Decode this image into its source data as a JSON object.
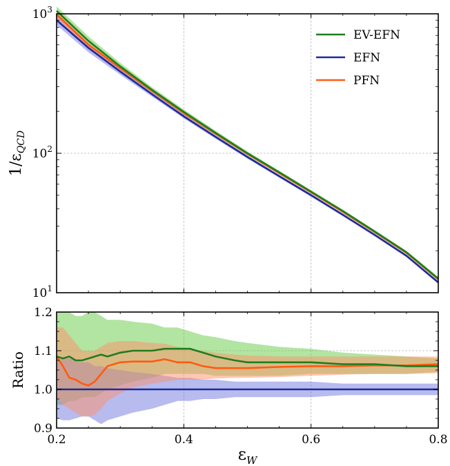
{
  "chart_data": [
    {
      "type": "line",
      "panel": "main",
      "ylabel": "1/ε_QCD",
      "yscale": "log",
      "xlim": [
        0.2,
        0.8
      ],
      "ylim": [
        10,
        1000
      ],
      "ytick_labels": [
        "10",
        "10",
        "10"
      ],
      "ytick_exponents": [
        "1",
        "2",
        "3"
      ],
      "grid": true,
      "legend": {
        "placement": "top-right",
        "entries": [
          "EV-EFN",
          "EFN",
          "PFN"
        ]
      },
      "x": [
        0.2,
        0.25,
        0.3,
        0.35,
        0.4,
        0.45,
        0.5,
        0.55,
        0.6,
        0.65,
        0.7,
        0.75,
        0.8
      ],
      "series": [
        {
          "name": "EV-EFN",
          "color": "#1e7d1e",
          "band_color": "#66cc44",
          "values": [
            1050,
            640,
            420,
            285,
            198,
            140,
            100,
            73,
            53,
            38.5,
            27.5,
            19.5,
            12.6
          ],
          "band_lower": [
            960,
            590,
            395,
            272,
            190,
            135,
            97,
            71,
            51.5,
            37.5,
            26.8,
            19.0,
            12.2
          ],
          "band_upper": [
            1130,
            690,
            445,
            298,
            206,
            145,
            103,
            75,
            54.5,
            39.5,
            28.2,
            20.0,
            13.0
          ]
        },
        {
          "name": "EFN",
          "color": "#1f2a99",
          "band_color": "#6f77dd",
          "values": [
            900,
            570,
            385,
            265,
            184,
            131,
            94,
            68.5,
            50,
            36.2,
            26,
            18.4,
            11.85
          ],
          "band_lower": [
            830,
            530,
            365,
            255,
            178,
            127,
            91.5,
            66.8,
            48.8,
            35.4,
            25.4,
            18.0,
            11.6
          ],
          "band_upper": [
            980,
            615,
            405,
            275,
            190,
            135,
            96.5,
            70.2,
            51.2,
            37.0,
            26.6,
            18.8,
            12.1
          ]
        },
        {
          "name": "PFN",
          "color": "#ff5a10",
          "band_color": "#ff8f6a",
          "values": [
            990,
            600,
            408,
            280,
            194,
            138,
            99,
            72,
            52.5,
            38,
            27.2,
            19.3,
            12.5
          ],
          "band_lower": [
            930,
            575,
            395,
            273,
            190,
            135,
            97,
            70.5,
            51.4,
            37.3,
            26.7,
            18.9,
            12.2
          ],
          "band_upper": [
            1050,
            625,
            420,
            287,
            198,
            141,
            101,
            73.5,
            53.6,
            38.7,
            27.7,
            19.7,
            12.8
          ]
        }
      ]
    },
    {
      "type": "line",
      "panel": "ratio",
      "xlabel": "ε_W",
      "ylabel": "Ratio",
      "xlim": [
        0.2,
        0.8
      ],
      "ylim": [
        0.9,
        1.2
      ],
      "xticks": [
        0.2,
        0.4,
        0.6,
        0.8
      ],
      "xtick_labels": [
        "0.2",
        "0.4",
        "0.6",
        "0.8"
      ],
      "yticks": [
        0.9,
        1.0,
        1.1,
        1.2
      ],
      "ytick_labels": [
        "0.9",
        "1.0",
        "1.1",
        "1.2"
      ],
      "grid": true,
      "x": [
        0.2,
        0.21,
        0.22,
        0.23,
        0.24,
        0.25,
        0.26,
        0.27,
        0.28,
        0.3,
        0.32,
        0.35,
        0.37,
        0.39,
        0.41,
        0.43,
        0.45,
        0.48,
        0.5,
        0.55,
        0.6,
        0.65,
        0.7,
        0.75,
        0.8
      ],
      "series": [
        {
          "name": "EV-EFN",
          "color": "#1e7d1e",
          "band_color": "#66cc44",
          "values": [
            1.085,
            1.08,
            1.085,
            1.075,
            1.075,
            1.08,
            1.085,
            1.09,
            1.085,
            1.095,
            1.1,
            1.1,
            1.105,
            1.105,
            1.105,
            1.095,
            1.085,
            1.075,
            1.07,
            1.07,
            1.07,
            1.065,
            1.065,
            1.06,
            1.06
          ],
          "band_lower": [
            0.96,
            0.96,
            0.97,
            0.97,
            0.98,
            0.98,
            0.98,
            0.99,
            1.0,
            1.01,
            1.02,
            1.03,
            1.04,
            1.04,
            1.04,
            1.04,
            1.035,
            1.035,
            1.035,
            1.035,
            1.04,
            1.04,
            1.04,
            1.04,
            1.045
          ],
          "band_upper": [
            1.2,
            1.2,
            1.2,
            1.19,
            1.19,
            1.2,
            1.2,
            1.19,
            1.18,
            1.18,
            1.175,
            1.17,
            1.16,
            1.16,
            1.15,
            1.14,
            1.135,
            1.125,
            1.12,
            1.11,
            1.105,
            1.095,
            1.09,
            1.085,
            1.08
          ]
        },
        {
          "name": "EFN",
          "color": "#1f2a99",
          "band_color": "#6f77dd",
          "values": [
            1.0,
            1.0,
            1.0,
            1.0,
            1.0,
            1.0,
            1.0,
            1.0,
            1.0,
            1.0,
            1.0,
            1.0,
            1.0,
            1.0,
            1.0,
            1.0,
            1.0,
            1.0,
            1.0,
            1.0,
            1.0,
            1.0,
            1.0,
            1.0,
            1.0
          ],
          "band_lower": [
            0.925,
            0.92,
            0.92,
            0.925,
            0.93,
            0.93,
            0.92,
            0.91,
            0.92,
            0.93,
            0.94,
            0.95,
            0.96,
            0.97,
            0.97,
            0.975,
            0.975,
            0.98,
            0.98,
            0.98,
            0.98,
            0.985,
            0.985,
            0.985,
            0.985
          ],
          "band_upper": [
            1.075,
            1.08,
            1.08,
            1.075,
            1.07,
            1.07,
            1.06,
            1.06,
            1.055,
            1.05,
            1.045,
            1.04,
            1.035,
            1.03,
            1.03,
            1.025,
            1.025,
            1.02,
            1.02,
            1.02,
            1.02,
            1.015,
            1.015,
            1.015,
            1.015
          ]
        },
        {
          "name": "PFN",
          "color": "#ff5a10",
          "band_color": "#ff8f6a",
          "values": [
            1.085,
            1.06,
            1.03,
            1.025,
            1.015,
            1.01,
            1.02,
            1.04,
            1.06,
            1.07,
            1.072,
            1.072,
            1.078,
            1.07,
            1.07,
            1.06,
            1.055,
            1.055,
            1.055,
            1.058,
            1.06,
            1.06,
            1.062,
            1.062,
            1.065
          ],
          "band_lower": [
            0.98,
            0.96,
            0.95,
            0.94,
            0.93,
            0.93,
            0.935,
            0.95,
            0.97,
            0.99,
            1.005,
            1.015,
            1.02,
            1.025,
            1.025,
            1.025,
            1.028,
            1.03,
            1.03,
            1.032,
            1.035,
            1.038,
            1.04,
            1.04,
            1.042
          ],
          "band_upper": [
            1.16,
            1.16,
            1.14,
            1.12,
            1.1,
            1.1,
            1.1,
            1.11,
            1.12,
            1.125,
            1.125,
            1.12,
            1.118,
            1.11,
            1.105,
            1.1,
            1.095,
            1.09,
            1.088,
            1.085,
            1.085,
            1.085,
            1.085,
            1.085,
            1.085
          ]
        }
      ]
    }
  ]
}
